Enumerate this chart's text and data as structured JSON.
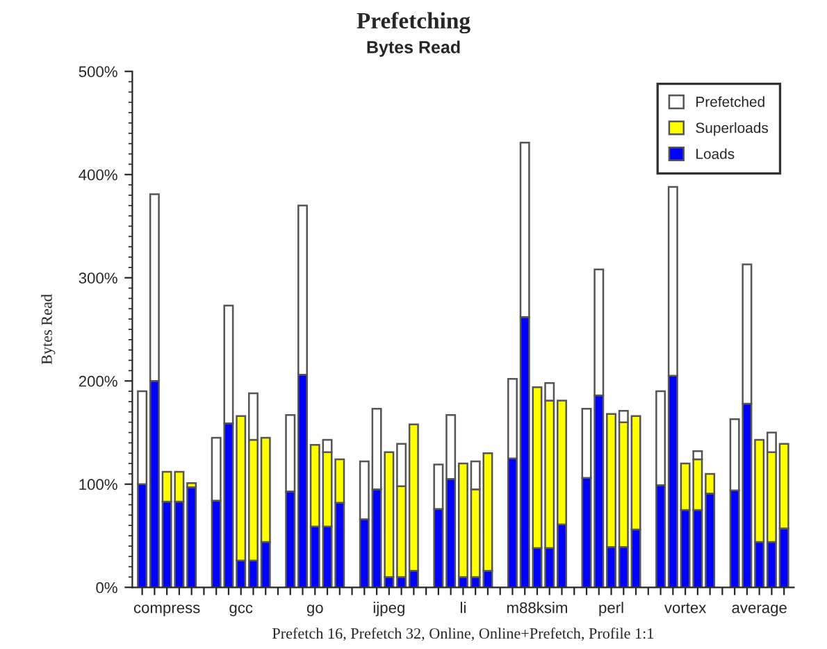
{
  "chart_data": {
    "type": "bar",
    "title": "Prefetching",
    "subtitle": "Bytes Read",
    "ylabel": "Bytes Read",
    "xlabel": "Prefetch 16, Prefetch 32, Online, Online+Prefetch, Profile 1:1",
    "categories": [
      null,
      null,
      "compress",
      null,
      null,
      null,
      null,
      null,
      "gcc",
      null,
      null,
      null,
      null,
      null,
      "go",
      null,
      null,
      null,
      null,
      null,
      "ijpeg",
      null,
      null,
      null,
      null,
      null,
      "li",
      null,
      null,
      null,
      null,
      null,
      "m88ksim",
      null,
      null,
      null,
      null,
      null,
      "perl",
      null,
      null,
      null,
      null,
      null,
      "vortex",
      null,
      null,
      null,
      null,
      null,
      "average",
      null,
      null
    ],
    "stacked": true,
    "series": [
      {
        "name": "Loads",
        "color": "#0000ff",
        "values": [
          100,
          200,
          83,
          83,
          97,
          null,
          84,
          159,
          26,
          26,
          44,
          null,
          93,
          206,
          59,
          59,
          82,
          null,
          66,
          95,
          10,
          10,
          16,
          null,
          76,
          105,
          10,
          10,
          16,
          null,
          125,
          262,
          38,
          38,
          61,
          null,
          106,
          186,
          39,
          39,
          56,
          null,
          99,
          205,
          75,
          75,
          91,
          null,
          94,
          178,
          44,
          44,
          57
        ]
      },
      {
        "name": "Superloads",
        "color": "#ffff00",
        "values": [
          null,
          null,
          29,
          29,
          4,
          null,
          null,
          null,
          140,
          117,
          101,
          null,
          null,
          null,
          79,
          72,
          42,
          null,
          null,
          null,
          121,
          88,
          142,
          null,
          null,
          null,
          110,
          85,
          114,
          null,
          null,
          null,
          156,
          143,
          120,
          null,
          null,
          null,
          129,
          121,
          110,
          null,
          null,
          null,
          45,
          49,
          19,
          null,
          null,
          null,
          99,
          87,
          82
        ]
      },
      {
        "name": "Prefetched",
        "color": "#ffffff",
        "values": [
          90,
          181,
          null,
          null,
          null,
          null,
          61,
          114,
          null,
          45,
          null,
          null,
          74,
          164,
          null,
          12,
          null,
          null,
          56,
          78,
          null,
          41,
          null,
          null,
          43,
          62,
          null,
          27,
          null,
          null,
          77,
          169,
          null,
          17,
          null,
          null,
          67,
          122,
          null,
          11,
          null,
          null,
          91,
          183,
          null,
          8,
          null,
          null,
          69,
          135,
          null,
          19,
          null
        ]
      }
    ],
    "ylim": [
      0,
      500
    ],
    "yticks": [
      {
        "value": 0,
        "label": "0%"
      },
      {
        "value": 100,
        "label": "100%"
      },
      {
        "value": 200,
        "label": "200%"
      },
      {
        "value": 300,
        "label": "300%"
      },
      {
        "value": 400,
        "label": "400%"
      },
      {
        "value": 500,
        "label": "500%"
      }
    ],
    "grid": false,
    "legend": "top right"
  }
}
